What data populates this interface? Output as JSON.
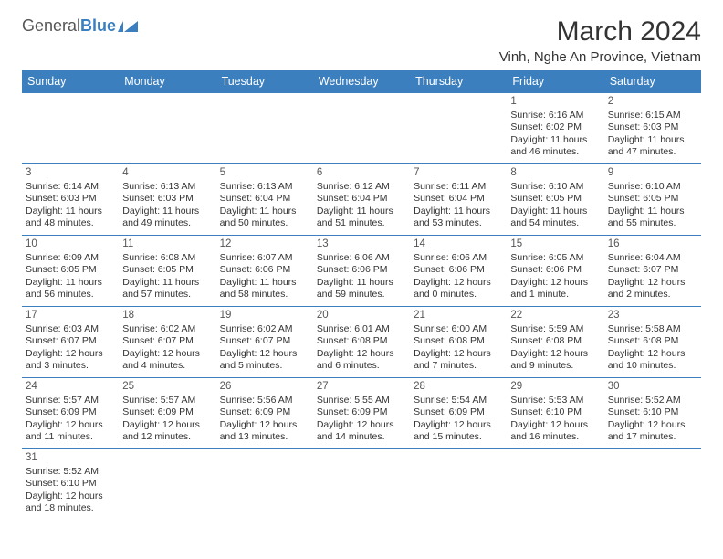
{
  "logo": {
    "primary": "General",
    "secondary": "Blue"
  },
  "header": {
    "title": "March 2024",
    "location": "Vinh, Nghe An Province, Vietnam"
  },
  "style": {
    "header_bg": "#3b7fbf",
    "header_fg": "#ffffff",
    "rule_color": "#3b7fbf",
    "text_color": "#333333",
    "muted_color": "#555555",
    "background": "#ffffff",
    "title_fontsize": 30,
    "location_fontsize": 15,
    "weekday_fontsize": 12.5,
    "cell_fontsize": 10.5,
    "daynum_fontsize": 11.5
  },
  "weekdays": [
    "Sunday",
    "Monday",
    "Tuesday",
    "Wednesday",
    "Thursday",
    "Friday",
    "Saturday"
  ],
  "weeks": [
    [
      null,
      null,
      null,
      null,
      null,
      {
        "day": "1",
        "sunrise": "Sunrise: 6:16 AM",
        "sunset": "Sunset: 6:02 PM",
        "daylight": "Daylight: 11 hours and 46 minutes."
      },
      {
        "day": "2",
        "sunrise": "Sunrise: 6:15 AM",
        "sunset": "Sunset: 6:03 PM",
        "daylight": "Daylight: 11 hours and 47 minutes."
      }
    ],
    [
      {
        "day": "3",
        "sunrise": "Sunrise: 6:14 AM",
        "sunset": "Sunset: 6:03 PM",
        "daylight": "Daylight: 11 hours and 48 minutes."
      },
      {
        "day": "4",
        "sunrise": "Sunrise: 6:13 AM",
        "sunset": "Sunset: 6:03 PM",
        "daylight": "Daylight: 11 hours and 49 minutes."
      },
      {
        "day": "5",
        "sunrise": "Sunrise: 6:13 AM",
        "sunset": "Sunset: 6:04 PM",
        "daylight": "Daylight: 11 hours and 50 minutes."
      },
      {
        "day": "6",
        "sunrise": "Sunrise: 6:12 AM",
        "sunset": "Sunset: 6:04 PM",
        "daylight": "Daylight: 11 hours and 51 minutes."
      },
      {
        "day": "7",
        "sunrise": "Sunrise: 6:11 AM",
        "sunset": "Sunset: 6:04 PM",
        "daylight": "Daylight: 11 hours and 53 minutes."
      },
      {
        "day": "8",
        "sunrise": "Sunrise: 6:10 AM",
        "sunset": "Sunset: 6:05 PM",
        "daylight": "Daylight: 11 hours and 54 minutes."
      },
      {
        "day": "9",
        "sunrise": "Sunrise: 6:10 AM",
        "sunset": "Sunset: 6:05 PM",
        "daylight": "Daylight: 11 hours and 55 minutes."
      }
    ],
    [
      {
        "day": "10",
        "sunrise": "Sunrise: 6:09 AM",
        "sunset": "Sunset: 6:05 PM",
        "daylight": "Daylight: 11 hours and 56 minutes."
      },
      {
        "day": "11",
        "sunrise": "Sunrise: 6:08 AM",
        "sunset": "Sunset: 6:05 PM",
        "daylight": "Daylight: 11 hours and 57 minutes."
      },
      {
        "day": "12",
        "sunrise": "Sunrise: 6:07 AM",
        "sunset": "Sunset: 6:06 PM",
        "daylight": "Daylight: 11 hours and 58 minutes."
      },
      {
        "day": "13",
        "sunrise": "Sunrise: 6:06 AM",
        "sunset": "Sunset: 6:06 PM",
        "daylight": "Daylight: 11 hours and 59 minutes."
      },
      {
        "day": "14",
        "sunrise": "Sunrise: 6:06 AM",
        "sunset": "Sunset: 6:06 PM",
        "daylight": "Daylight: 12 hours and 0 minutes."
      },
      {
        "day": "15",
        "sunrise": "Sunrise: 6:05 AM",
        "sunset": "Sunset: 6:06 PM",
        "daylight": "Daylight: 12 hours and 1 minute."
      },
      {
        "day": "16",
        "sunrise": "Sunrise: 6:04 AM",
        "sunset": "Sunset: 6:07 PM",
        "daylight": "Daylight: 12 hours and 2 minutes."
      }
    ],
    [
      {
        "day": "17",
        "sunrise": "Sunrise: 6:03 AM",
        "sunset": "Sunset: 6:07 PM",
        "daylight": "Daylight: 12 hours and 3 minutes."
      },
      {
        "day": "18",
        "sunrise": "Sunrise: 6:02 AM",
        "sunset": "Sunset: 6:07 PM",
        "daylight": "Daylight: 12 hours and 4 minutes."
      },
      {
        "day": "19",
        "sunrise": "Sunrise: 6:02 AM",
        "sunset": "Sunset: 6:07 PM",
        "daylight": "Daylight: 12 hours and 5 minutes."
      },
      {
        "day": "20",
        "sunrise": "Sunrise: 6:01 AM",
        "sunset": "Sunset: 6:08 PM",
        "daylight": "Daylight: 12 hours and 6 minutes."
      },
      {
        "day": "21",
        "sunrise": "Sunrise: 6:00 AM",
        "sunset": "Sunset: 6:08 PM",
        "daylight": "Daylight: 12 hours and 7 minutes."
      },
      {
        "day": "22",
        "sunrise": "Sunrise: 5:59 AM",
        "sunset": "Sunset: 6:08 PM",
        "daylight": "Daylight: 12 hours and 9 minutes."
      },
      {
        "day": "23",
        "sunrise": "Sunrise: 5:58 AM",
        "sunset": "Sunset: 6:08 PM",
        "daylight": "Daylight: 12 hours and 10 minutes."
      }
    ],
    [
      {
        "day": "24",
        "sunrise": "Sunrise: 5:57 AM",
        "sunset": "Sunset: 6:09 PM",
        "daylight": "Daylight: 12 hours and 11 minutes."
      },
      {
        "day": "25",
        "sunrise": "Sunrise: 5:57 AM",
        "sunset": "Sunset: 6:09 PM",
        "daylight": "Daylight: 12 hours and 12 minutes."
      },
      {
        "day": "26",
        "sunrise": "Sunrise: 5:56 AM",
        "sunset": "Sunset: 6:09 PM",
        "daylight": "Daylight: 12 hours and 13 minutes."
      },
      {
        "day": "27",
        "sunrise": "Sunrise: 5:55 AM",
        "sunset": "Sunset: 6:09 PM",
        "daylight": "Daylight: 12 hours and 14 minutes."
      },
      {
        "day": "28",
        "sunrise": "Sunrise: 5:54 AM",
        "sunset": "Sunset: 6:09 PM",
        "daylight": "Daylight: 12 hours and 15 minutes."
      },
      {
        "day": "29",
        "sunrise": "Sunrise: 5:53 AM",
        "sunset": "Sunset: 6:10 PM",
        "daylight": "Daylight: 12 hours and 16 minutes."
      },
      {
        "day": "30",
        "sunrise": "Sunrise: 5:52 AM",
        "sunset": "Sunset: 6:10 PM",
        "daylight": "Daylight: 12 hours and 17 minutes."
      }
    ],
    [
      {
        "day": "31",
        "sunrise": "Sunrise: 5:52 AM",
        "sunset": "Sunset: 6:10 PM",
        "daylight": "Daylight: 12 hours and 18 minutes."
      },
      null,
      null,
      null,
      null,
      null,
      null
    ]
  ]
}
